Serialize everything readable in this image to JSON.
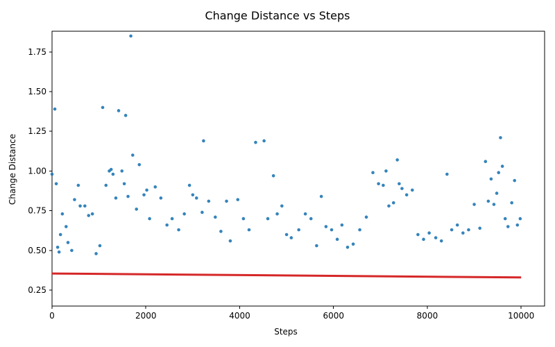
{
  "chart_data": {
    "type": "scatter",
    "title": "Change Distance vs Steps",
    "xlabel": "Steps",
    "ylabel": "Change Distance",
    "xlim": [
      0,
      10500
    ],
    "ylim": [
      0.15,
      1.88
    ],
    "xticks": [
      0,
      2000,
      4000,
      6000,
      8000,
      10000
    ],
    "yticks": [
      0.25,
      0.5,
      0.75,
      1.0,
      1.25,
      1.5,
      1.75
    ],
    "xtick_labels": [
      "0",
      "2000",
      "4000",
      "6000",
      "8000",
      "10000"
    ],
    "ytick_labels": [
      "0.25",
      "0.50",
      "0.75",
      "1.00",
      "1.25",
      "1.50",
      "1.75"
    ],
    "series": [
      {
        "type": "scatter",
        "color": "#1f77b4",
        "points": [
          [
            0,
            0.98
          ],
          [
            60,
            1.39
          ],
          [
            90,
            0.92
          ],
          [
            120,
            0.52
          ],
          [
            150,
            0.49
          ],
          [
            180,
            0.6
          ],
          [
            220,
            0.73
          ],
          [
            300,
            0.65
          ],
          [
            340,
            0.55
          ],
          [
            420,
            0.5
          ],
          [
            480,
            0.82
          ],
          [
            560,
            0.91
          ],
          [
            600,
            0.78
          ],
          [
            700,
            0.78
          ],
          [
            780,
            0.72
          ],
          [
            860,
            0.73
          ],
          [
            940,
            0.48
          ],
          [
            1020,
            0.53
          ],
          [
            1080,
            1.4
          ],
          [
            1150,
            0.91
          ],
          [
            1220,
            1.0
          ],
          [
            1260,
            1.01
          ],
          [
            1300,
            0.98
          ],
          [
            1360,
            0.83
          ],
          [
            1420,
            1.38
          ],
          [
            1490,
            1.0
          ],
          [
            1540,
            0.92
          ],
          [
            1570,
            1.35
          ],
          [
            1620,
            0.84
          ],
          [
            1680,
            1.85
          ],
          [
            1720,
            1.1
          ],
          [
            1800,
            0.76
          ],
          [
            1860,
            1.04
          ],
          [
            1960,
            0.85
          ],
          [
            2020,
            0.88
          ],
          [
            2080,
            0.7
          ],
          [
            2200,
            0.9
          ],
          [
            2320,
            0.83
          ],
          [
            2450,
            0.66
          ],
          [
            2560,
            0.7
          ],
          [
            2700,
            0.63
          ],
          [
            2820,
            0.73
          ],
          [
            2930,
            0.91
          ],
          [
            3000,
            0.85
          ],
          [
            3080,
            0.83
          ],
          [
            3200,
            0.74
          ],
          [
            3230,
            1.19
          ],
          [
            3340,
            0.81
          ],
          [
            3480,
            0.71
          ],
          [
            3600,
            0.62
          ],
          [
            3720,
            0.81
          ],
          [
            3800,
            0.56
          ],
          [
            3960,
            0.82
          ],
          [
            4080,
            0.7
          ],
          [
            4200,
            0.63
          ],
          [
            4340,
            1.18
          ],
          [
            4520,
            1.19
          ],
          [
            4600,
            0.7
          ],
          [
            4720,
            0.97
          ],
          [
            4800,
            0.73
          ],
          [
            4900,
            0.78
          ],
          [
            5000,
            0.6
          ],
          [
            5100,
            0.58
          ],
          [
            5260,
            0.63
          ],
          [
            5400,
            0.73
          ],
          [
            5520,
            0.7
          ],
          [
            5640,
            0.53
          ],
          [
            5740,
            0.84
          ],
          [
            5840,
            0.65
          ],
          [
            5960,
            0.63
          ],
          [
            6080,
            0.57
          ],
          [
            6180,
            0.66
          ],
          [
            6300,
            0.52
          ],
          [
            6420,
            0.54
          ],
          [
            6560,
            0.63
          ],
          [
            6700,
            0.71
          ],
          [
            6840,
            0.99
          ],
          [
            6960,
            0.92
          ],
          [
            7060,
            0.91
          ],
          [
            7120,
            1.0
          ],
          [
            7180,
            0.78
          ],
          [
            7280,
            0.8
          ],
          [
            7360,
            1.07
          ],
          [
            7400,
            0.92
          ],
          [
            7460,
            0.89
          ],
          [
            7560,
            0.85
          ],
          [
            7680,
            0.88
          ],
          [
            7800,
            0.6
          ],
          [
            7920,
            0.57
          ],
          [
            8040,
            0.61
          ],
          [
            8180,
            0.58
          ],
          [
            8300,
            0.56
          ],
          [
            8420,
            0.98
          ],
          [
            8520,
            0.63
          ],
          [
            8640,
            0.66
          ],
          [
            8760,
            0.61
          ],
          [
            8880,
            0.63
          ],
          [
            9000,
            0.79
          ],
          [
            9120,
            0.64
          ],
          [
            9240,
            1.06
          ],
          [
            9300,
            0.81
          ],
          [
            9360,
            0.95
          ],
          [
            9420,
            0.79
          ],
          [
            9480,
            0.86
          ],
          [
            9520,
            0.99
          ],
          [
            9560,
            1.21
          ],
          [
            9600,
            1.03
          ],
          [
            9660,
            0.7
          ],
          [
            9720,
            0.65
          ],
          [
            9800,
            0.8
          ],
          [
            9860,
            0.94
          ],
          [
            9920,
            0.66
          ],
          [
            9980,
            0.7
          ]
        ]
      }
    ],
    "trendline": {
      "color": "#d62728",
      "start": [
        0,
        0.355
      ],
      "end": [
        10000,
        0.33
      ]
    }
  }
}
